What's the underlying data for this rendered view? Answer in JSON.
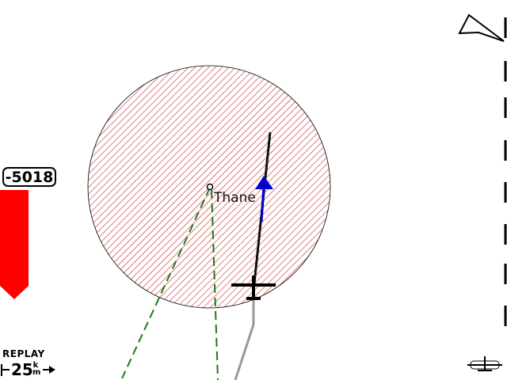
{
  "waypoint": {
    "name": "Thane"
  },
  "altitude_difference": {
    "value": "-5018"
  },
  "mode": {
    "label": "REPLAY"
  },
  "map_scale": {
    "value": "25",
    "unit_top": "k",
    "unit_bottom": "m"
  },
  "colors": {
    "airspace_hatch": "#cc2222",
    "final_glide_bar": "#ff0000",
    "course_line": "#1a7a1a",
    "track_line": "#111111",
    "trail": "#999999",
    "wind_arrow": "#0000cc"
  }
}
